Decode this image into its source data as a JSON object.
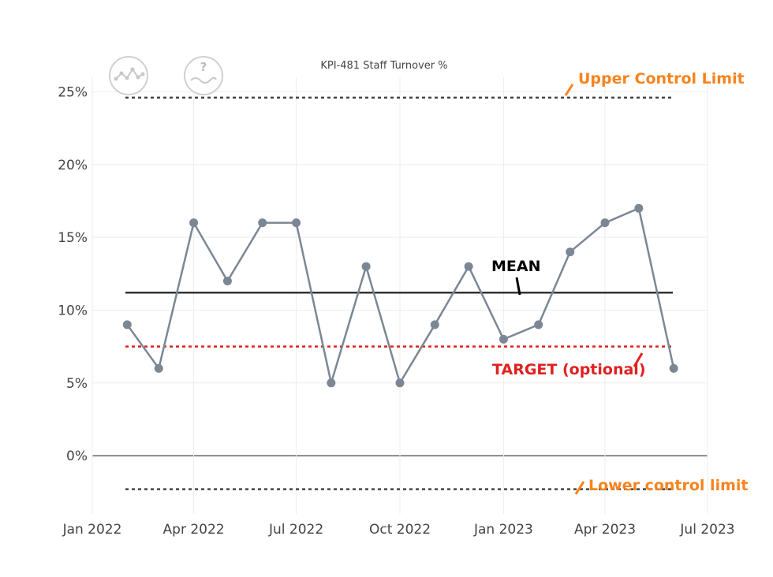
{
  "chart_data": {
    "type": "line",
    "title": "KPI-481 Staff Turnover %",
    "xlabel": "",
    "ylabel": "",
    "x": [
      "2022-02-01",
      "2022-03-01",
      "2022-04-01",
      "2022-05-01",
      "2022-06-01",
      "2022-07-01",
      "2022-08-01",
      "2022-09-01",
      "2022-10-01",
      "2022-11-01",
      "2022-12-01",
      "2023-01-01",
      "2023-02-01",
      "2023-03-01",
      "2023-04-01",
      "2023-05-01",
      "2023-06-01"
    ],
    "series": [
      {
        "name": "",
        "color": "#7b8794",
        "values": [
          9,
          6,
          16,
          12,
          16,
          16,
          5,
          13,
          5,
          9,
          13,
          8,
          9,
          14,
          16,
          17,
          6
        ]
      }
    ],
    "xlim": [
      "2022-01-01",
      "2023-07-01"
    ],
    "ylim": [
      -4,
      26
    ],
    "x_ticks": [
      {
        "date": "2022-01-01",
        "label": "Jan 2022"
      },
      {
        "date": "2022-04-01",
        "label": "Apr 2022"
      },
      {
        "date": "2022-07-01",
        "label": "Jul 2022"
      },
      {
        "date": "2022-10-01",
        "label": "Oct 2022"
      },
      {
        "date": "2023-01-01",
        "label": "Jan 2023"
      },
      {
        "date": "2023-04-01",
        "label": "Apr 2023"
      },
      {
        "date": "2023-07-01",
        "label": "Jul 2023"
      }
    ],
    "y_ticks": [
      {
        "value": 0,
        "label": "0%"
      },
      {
        "value": 5,
        "label": "5%"
      },
      {
        "value": 10,
        "label": "10%"
      },
      {
        "value": 15,
        "label": "15%"
      },
      {
        "value": 20,
        "label": "20%"
      },
      {
        "value": 25,
        "label": "25%"
      }
    ],
    "grid": true,
    "reference_lines": [
      {
        "id": "ucl",
        "value": 24.6,
        "style": "dotted",
        "color": "#444444"
      },
      {
        "id": "mean",
        "value": 11.2,
        "style": "solid",
        "color": "#333333"
      },
      {
        "id": "target",
        "value": 7.5,
        "style": "dotted",
        "color": "#e02020"
      },
      {
        "id": "lcl",
        "value": -2.3,
        "style": "dotted",
        "color": "#444444"
      }
    ],
    "annotations": [
      {
        "id": "ucl",
        "text": "Upper Control Limit",
        "color": "#f7831e"
      },
      {
        "id": "mean",
        "text": "MEAN",
        "color": "#000000"
      },
      {
        "id": "target",
        "text": "TARGET (optional)",
        "color": "#e02020"
      },
      {
        "id": "lcl",
        "text": "Lower control limit",
        "color": "#f7831e"
      }
    ]
  },
  "toolbar": {
    "buttons": [
      {
        "icon": "line-chart-icon"
      },
      {
        "icon": "help-icon",
        "glyph": "?"
      }
    ]
  }
}
